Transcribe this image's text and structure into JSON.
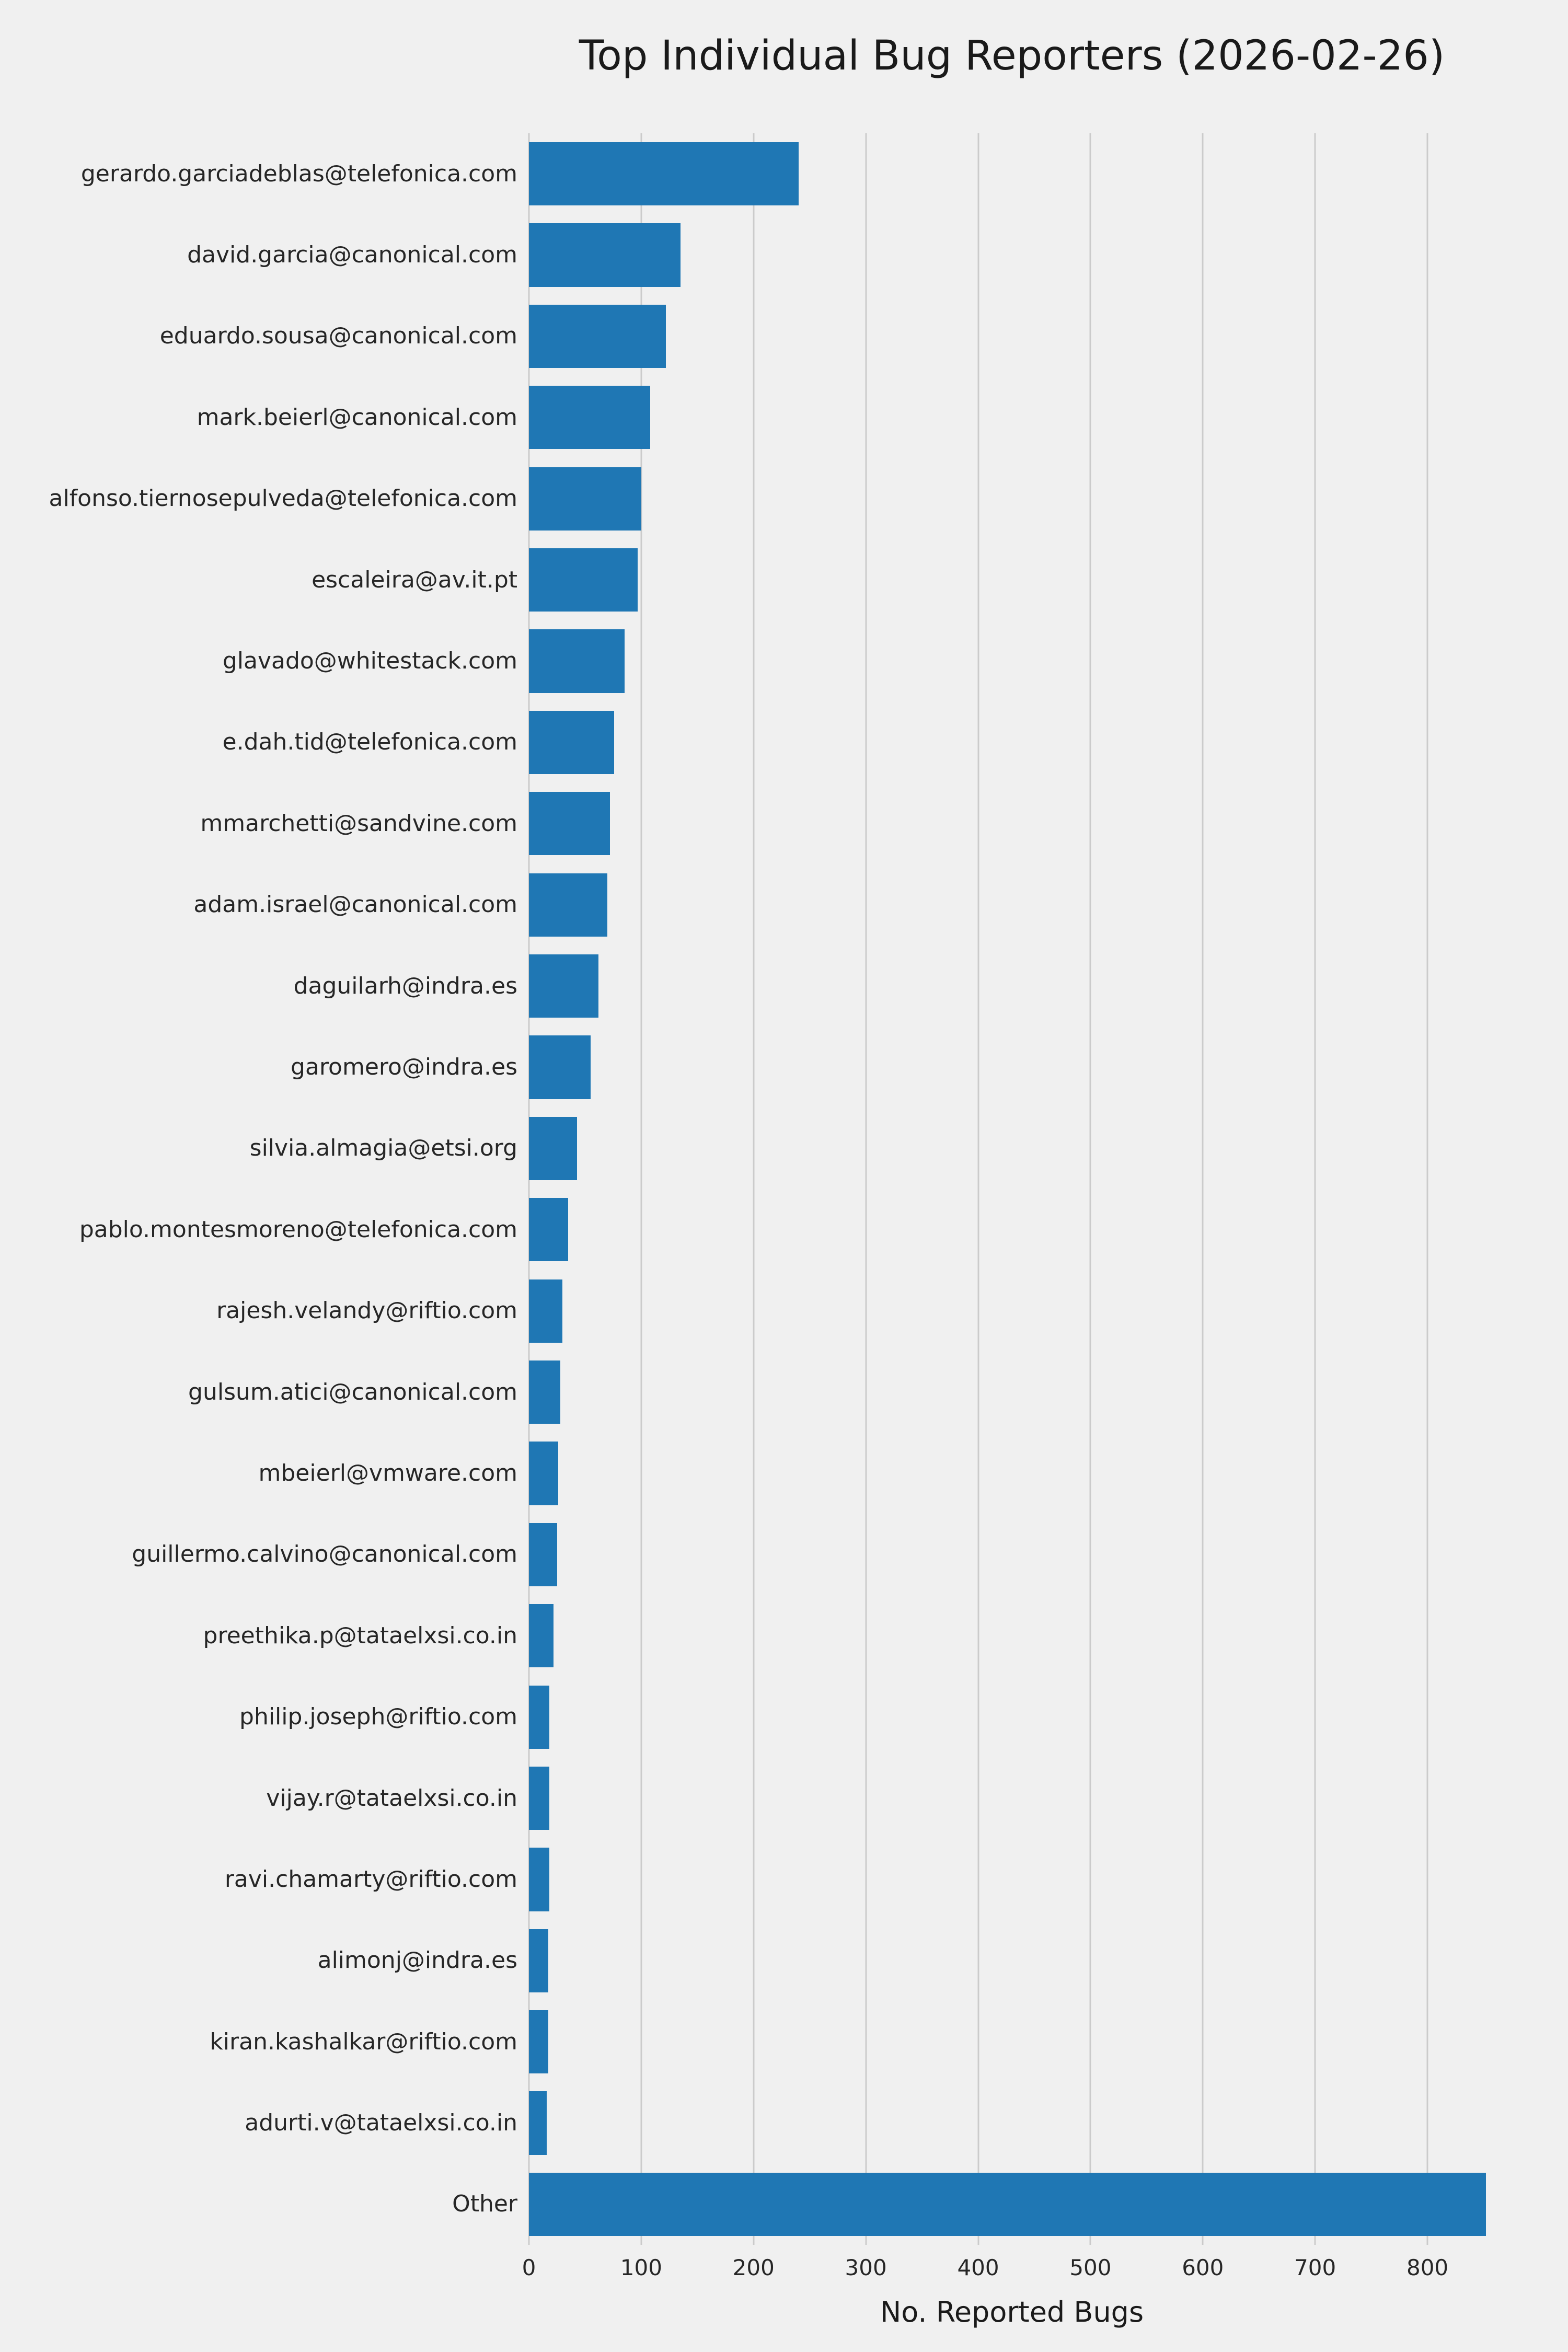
{
  "chart_data": {
    "type": "bar",
    "orientation": "horizontal",
    "title": "Top Individual Bug Reporters (2026-02-26)",
    "xlabel": "No. Reported Bugs",
    "ylabel": "",
    "xlim": [
      0,
      860
    ],
    "xticks": [
      0,
      100,
      200,
      300,
      400,
      500,
      600,
      700,
      800
    ],
    "grid": "vertical",
    "legend": "none",
    "bar_color": "#1f77b4",
    "background_color": "#f0f0f0",
    "gridline_color": "#cbcbcb",
    "categories": [
      "gerardo.garciadeblas@telefonica.com",
      "david.garcia@canonical.com",
      "eduardo.sousa@canonical.com",
      "mark.beierl@canonical.com",
      "alfonso.tiernosepulveda@telefonica.com",
      "escaleira@av.it.pt",
      "glavado@whitestack.com",
      "e.dah.tid@telefonica.com",
      "mmarchetti@sandvine.com",
      "adam.israel@canonical.com",
      "daguilarh@indra.es",
      "garomero@indra.es",
      "silvia.almagia@etsi.org",
      "pablo.montesmoreno@telefonica.com",
      "rajesh.velandy@riftio.com",
      "gulsum.atici@canonical.com",
      "mbeierl@vmware.com",
      "guillermo.calvino@canonical.com",
      "preethika.p@tataelxsi.co.in",
      "philip.joseph@riftio.com",
      "vijay.r@tataelxsi.co.in",
      "ravi.chamarty@riftio.com",
      "alimonj@indra.es",
      "kiran.kashalkar@riftio.com",
      "adurti.v@tataelxsi.co.in",
      "Other"
    ],
    "values": [
      240,
      135,
      122,
      108,
      100,
      97,
      85,
      76,
      72,
      70,
      62,
      55,
      43,
      35,
      30,
      28,
      26,
      25,
      22,
      18,
      18,
      18,
      17,
      17,
      16,
      852
    ]
  }
}
